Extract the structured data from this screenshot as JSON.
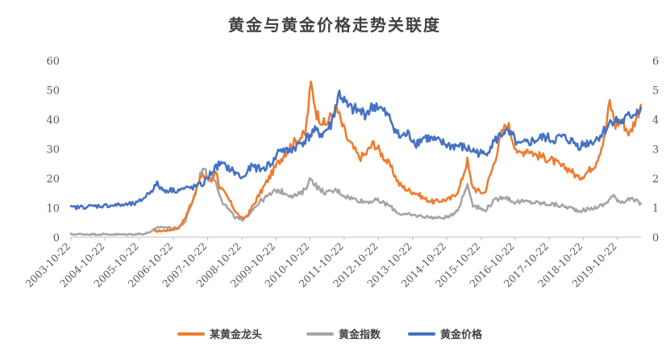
{
  "chart_data": {
    "type": "line",
    "title": "黄金与黄金价格走势关联度",
    "x_ticks": [
      "2003-10-22",
      "2004-10-22",
      "2005-10-22",
      "2006-10-22",
      "2007-10-22",
      "2008-10-22",
      "2009-10-22",
      "2010-10-22",
      "2011-10-22",
      "2012-10-22",
      "2013-10-22",
      "2014-10-22",
      "2015-10-22",
      "2016-10-22",
      "2017-10-22",
      "2018-10-22",
      "2019-10-22"
    ],
    "x_range": [
      "2003-10-22",
      "2020-06-30"
    ],
    "y_left": {
      "range": [
        0,
        60
      ],
      "ticks": [
        "0",
        "10",
        "20",
        "30",
        "40",
        "50",
        "60"
      ]
    },
    "y_right": {
      "range": [
        0,
        6
      ],
      "ticks": [
        "0",
        "1",
        "2",
        "3",
        "4",
        "5",
        "6"
      ]
    },
    "grid": false,
    "legend_position": "bottom",
    "series": [
      {
        "name": "某黄金龙头",
        "axis": "left",
        "color": "#ED7D31",
        "points": [
          [
            "2006-04-01",
            2.0
          ],
          [
            "2006-07-01",
            2.2
          ],
          [
            "2006-10-01",
            2.5
          ],
          [
            "2007-01-01",
            3.5
          ],
          [
            "2007-03-01",
            7
          ],
          [
            "2007-06-01",
            14
          ],
          [
            "2007-08-01",
            20
          ],
          [
            "2007-10-01",
            21
          ],
          [
            "2007-12-01",
            19
          ],
          [
            "2008-01-15",
            23
          ],
          [
            "2008-03-01",
            17
          ],
          [
            "2008-06-01",
            13
          ],
          [
            "2008-09-01",
            8
          ],
          [
            "2008-11-01",
            6
          ],
          [
            "2009-01-01",
            8
          ],
          [
            "2009-04-01",
            13
          ],
          [
            "2009-07-01",
            18
          ],
          [
            "2009-10-01",
            23
          ],
          [
            "2009-12-01",
            26
          ],
          [
            "2010-03-01",
            30
          ],
          [
            "2010-06-01",
            33
          ],
          [
            "2010-09-01",
            35
          ],
          [
            "2010-11-01",
            52
          ],
          [
            "2011-01-01",
            42
          ],
          [
            "2011-04-01",
            38
          ],
          [
            "2011-08-01",
            44
          ],
          [
            "2011-10-01",
            38
          ],
          [
            "2011-12-01",
            33
          ],
          [
            "2012-02-01",
            30
          ],
          [
            "2012-04-01",
            27
          ],
          [
            "2012-06-01",
            28
          ],
          [
            "2012-09-01",
            32
          ],
          [
            "2012-12-01",
            28
          ],
          [
            "2013-03-01",
            24
          ],
          [
            "2013-06-01",
            18
          ],
          [
            "2013-09-01",
            16
          ],
          [
            "2013-12-01",
            15
          ],
          [
            "2014-03-01",
            13
          ],
          [
            "2014-06-01",
            12
          ],
          [
            "2014-09-01",
            12.5
          ],
          [
            "2014-12-01",
            13
          ],
          [
            "2015-03-01",
            16
          ],
          [
            "2015-06-01",
            26
          ],
          [
            "2015-07-15",
            18
          ],
          [
            "2015-09-01",
            16
          ],
          [
            "2015-12-01",
            15
          ],
          [
            "2016-03-01",
            24
          ],
          [
            "2016-06-01",
            35
          ],
          [
            "2016-08-01",
            39
          ],
          [
            "2016-10-01",
            33
          ],
          [
            "2016-12-01",
            28
          ],
          [
            "2017-03-01",
            30
          ],
          [
            "2017-06-01",
            28
          ],
          [
            "2017-09-01",
            27
          ],
          [
            "2017-12-01",
            26
          ],
          [
            "2018-03-01",
            24
          ],
          [
            "2018-06-01",
            23
          ],
          [
            "2018-09-01",
            20
          ],
          [
            "2018-12-01",
            22
          ],
          [
            "2019-03-01",
            25
          ],
          [
            "2019-06-01",
            33
          ],
          [
            "2019-08-01",
            46
          ],
          [
            "2019-10-01",
            38
          ],
          [
            "2019-12-01",
            40
          ],
          [
            "2020-03-01",
            35
          ],
          [
            "2020-06-30",
            45
          ]
        ]
      },
      {
        "name": "黄金指数",
        "axis": "left",
        "color": "#A5A5A5",
        "points": [
          [
            "2003-10-22",
            1.0
          ],
          [
            "2004-06-01",
            1.0
          ],
          [
            "2005-06-01",
            0.9
          ],
          [
            "2006-01-01",
            1.2
          ],
          [
            "2006-06-01",
            3.5
          ],
          [
            "2006-12-01",
            3.0
          ],
          [
            "2007-03-01",
            5.5
          ],
          [
            "2007-06-01",
            14
          ],
          [
            "2007-09-01",
            24
          ],
          [
            "2007-11-01",
            20
          ],
          [
            "2008-01-01",
            20
          ],
          [
            "2008-04-01",
            12
          ],
          [
            "2008-08-01",
            7
          ],
          [
            "2008-11-01",
            5.5
          ],
          [
            "2009-02-01",
            9
          ],
          [
            "2009-05-01",
            12
          ],
          [
            "2009-08-01",
            14
          ],
          [
            "2009-11-01",
            16
          ],
          [
            "2010-02-01",
            15
          ],
          [
            "2010-05-01",
            14
          ],
          [
            "2010-08-01",
            15
          ],
          [
            "2010-11-01",
            20
          ],
          [
            "2011-02-01",
            16
          ],
          [
            "2011-05-01",
            15
          ],
          [
            "2011-08-01",
            16
          ],
          [
            "2011-11-01",
            14
          ],
          [
            "2012-02-01",
            13
          ],
          [
            "2012-06-01",
            12
          ],
          [
            "2012-10-01",
            12.5
          ],
          [
            "2013-02-01",
            11
          ],
          [
            "2013-06-01",
            8
          ],
          [
            "2013-10-01",
            7.5
          ],
          [
            "2014-03-01",
            7
          ],
          [
            "2014-08-01",
            6.5
          ],
          [
            "2014-12-01",
            7
          ],
          [
            "2015-03-01",
            10
          ],
          [
            "2015-06-01",
            18
          ],
          [
            "2015-08-01",
            11
          ],
          [
            "2015-12-01",
            9
          ],
          [
            "2016-03-01",
            12
          ],
          [
            "2016-07-01",
            14
          ],
          [
            "2016-10-01",
            12
          ],
          [
            "2017-03-01",
            12
          ],
          [
            "2017-08-01",
            11.5
          ],
          [
            "2018-01-01",
            11
          ],
          [
            "2018-06-01",
            10
          ],
          [
            "2018-09-01",
            9
          ],
          [
            "2019-01-01",
            9.5
          ],
          [
            "2019-06-01",
            11
          ],
          [
            "2019-09-01",
            14
          ],
          [
            "2019-12-01",
            12
          ],
          [
            "2020-03-01",
            13
          ],
          [
            "2020-06-30",
            11.5
          ]
        ]
      },
      {
        "name": "黄金价格",
        "axis": "right",
        "color": "#4472C4",
        "points": [
          [
            "2003-10-22",
            1.0
          ],
          [
            "2004-06-01",
            1.05
          ],
          [
            "2004-12-01",
            1.08
          ],
          [
            "2005-06-01",
            1.1
          ],
          [
            "2005-10-01",
            1.15
          ],
          [
            "2006-01-01",
            1.4
          ],
          [
            "2006-05-01",
            1.8
          ],
          [
            "2006-07-01",
            1.6
          ],
          [
            "2006-12-01",
            1.6
          ],
          [
            "2007-06-01",
            1.7
          ],
          [
            "2007-09-01",
            1.8
          ],
          [
            "2007-12-01",
            2.2
          ],
          [
            "2008-03-01",
            2.5
          ],
          [
            "2008-06-01",
            2.35
          ],
          [
            "2008-09-01",
            2.15
          ],
          [
            "2008-11-01",
            2.0
          ],
          [
            "2009-02-01",
            2.4
          ],
          [
            "2009-06-01",
            2.3
          ],
          [
            "2009-10-01",
            2.6
          ],
          [
            "2009-12-01",
            3.0
          ],
          [
            "2010-03-01",
            2.9
          ],
          [
            "2010-06-01",
            3.1
          ],
          [
            "2010-09-01",
            3.3
          ],
          [
            "2010-12-01",
            3.6
          ],
          [
            "2011-03-01",
            3.5
          ],
          [
            "2011-06-01",
            3.8
          ],
          [
            "2011-09-01",
            4.9
          ],
          [
            "2011-12-01",
            4.4
          ],
          [
            "2012-03-01",
            4.3
          ],
          [
            "2012-06-01",
            4.2
          ],
          [
            "2012-10-01",
            4.5
          ],
          [
            "2012-12-01",
            4.3
          ],
          [
            "2013-03-01",
            4.0
          ],
          [
            "2013-06-01",
            3.4
          ],
          [
            "2013-09-01",
            3.5
          ],
          [
            "2013-12-01",
            3.2
          ],
          [
            "2014-03-01",
            3.4
          ],
          [
            "2014-06-01",
            3.3
          ],
          [
            "2014-09-01",
            3.2
          ],
          [
            "2014-12-01",
            3.1
          ],
          [
            "2015-03-01",
            3.1
          ],
          [
            "2015-06-01",
            3.0
          ],
          [
            "2015-09-01",
            2.9
          ],
          [
            "2015-12-01",
            2.8
          ],
          [
            "2016-03-01",
            3.2
          ],
          [
            "2016-07-01",
            3.6
          ],
          [
            "2016-10-01",
            3.4
          ],
          [
            "2016-12-01",
            3.1
          ],
          [
            "2017-03-01",
            3.2
          ],
          [
            "2017-06-01",
            3.3
          ],
          [
            "2017-09-01",
            3.4
          ],
          [
            "2017-12-01",
            3.3
          ],
          [
            "2018-03-01",
            3.4
          ],
          [
            "2018-06-01",
            3.3
          ],
          [
            "2018-09-01",
            3.1
          ],
          [
            "2018-12-01",
            3.2
          ],
          [
            "2019-03-01",
            3.3
          ],
          [
            "2019-06-01",
            3.6
          ],
          [
            "2019-09-01",
            4.0
          ],
          [
            "2019-12-01",
            3.9
          ],
          [
            "2020-03-01",
            4.1
          ],
          [
            "2020-06-30",
            4.4
          ]
        ]
      }
    ]
  }
}
